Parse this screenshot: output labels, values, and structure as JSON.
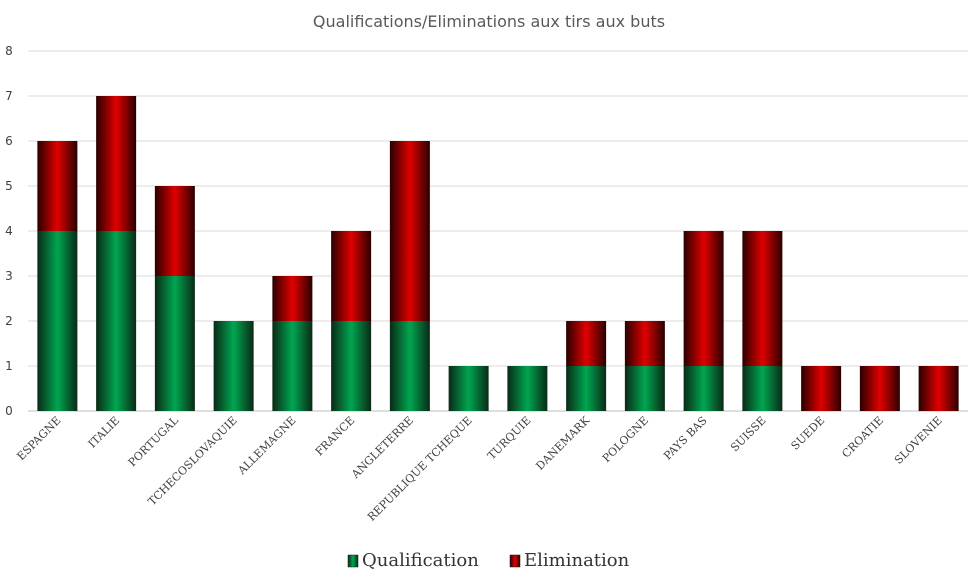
{
  "chart_data": {
    "type": "bar",
    "stacked": true,
    "title": "Qualifications/Eliminations aux tirs aux buts",
    "xlabel": "",
    "ylabel": "",
    "ylim": [
      0,
      8
    ],
    "yticks": [
      "0",
      "1",
      "2",
      "3",
      "4",
      "5",
      "6",
      "7",
      "8"
    ],
    "grid": true,
    "legend_position": "bottom",
    "categories": [
      "ESPAGNE",
      "ITALIE",
      "PORTUGAL",
      "TCHECOSLOVAQUIE",
      "ALLEMAGNE",
      "FRANCE",
      "ANGLETERRE",
      "REPUBLIQUE TCHEQUE",
      "TURQUIE",
      "DANEMARK",
      "POLOGNE",
      "PAYS BAS",
      "SUISSE",
      "SUEDE",
      "CROATIE",
      "SLOVENIE"
    ],
    "series": [
      {
        "name": "Qualification",
        "color": "#00a651",
        "values": [
          4,
          4,
          3,
          2,
          2,
          2,
          2,
          1,
          1,
          1,
          1,
          1,
          1,
          0,
          0,
          0
        ]
      },
      {
        "name": "Elimination",
        "color": "#e00000",
        "values": [
          2,
          3,
          2,
          0,
          1,
          2,
          4,
          0,
          0,
          1,
          1,
          3,
          3,
          1,
          1,
          1
        ]
      }
    ]
  }
}
